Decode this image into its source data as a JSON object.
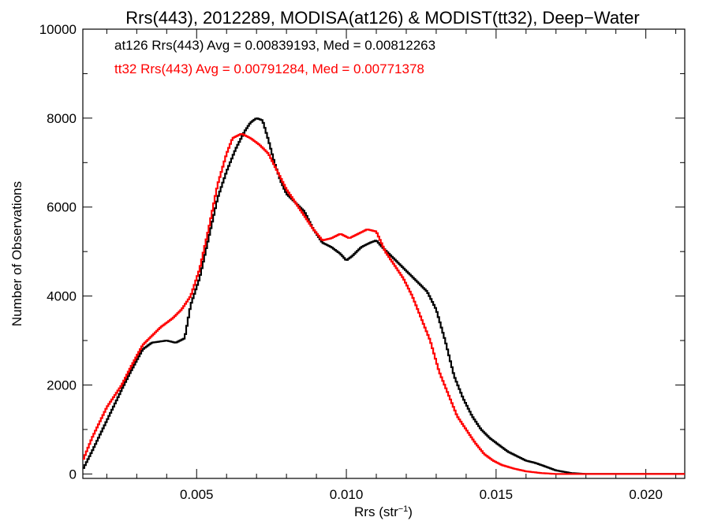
{
  "chart_data": {
    "type": "line",
    "title": "Rrs(443), 2012289, MODISA(at126) & MODIST(tt32), Deep−Water",
    "xlabel": "Rrs (str",
    "xlabel_sup": "−1",
    "xlabel_close": ")",
    "ylabel": "Number of Observations",
    "xlim": [
      0.0012,
      0.0213
    ],
    "ylim": [
      -100,
      10000
    ],
    "x_ticks": [
      0.005,
      0.01,
      0.015,
      0.02
    ],
    "x_tick_labels": [
      "0.005",
      "0.010",
      "0.015",
      "0.020"
    ],
    "x_minor_ticks": [
      0.002,
      0.003,
      0.004,
      0.006,
      0.007,
      0.008,
      0.009,
      0.011,
      0.012,
      0.013,
      0.014,
      0.016,
      0.017,
      0.018,
      0.019,
      0.021
    ],
    "y_ticks": [
      0,
      2000,
      4000,
      6000,
      8000,
      10000
    ],
    "y_tick_labels": [
      "0",
      "2000",
      "4000",
      "6000",
      "8000",
      "10000"
    ],
    "y_minor_ticks": [
      1000,
      3000,
      5000,
      7000,
      9000
    ],
    "grid": false,
    "annotations": [
      {
        "text": "at126 Rrs(443) Avg = 0.00839193, Med = 0.00812263",
        "color": "#000000"
      },
      {
        "text": "tt32 Rrs(443) Avg = 0.00791284, Med = 0.00771378",
        "color": "#ff0000"
      }
    ],
    "series": [
      {
        "color": "#000000",
        "step": true,
        "points": [
          [
            0.0012,
            100
          ],
          [
            0.0015,
            500
          ],
          [
            0.002,
            1200
          ],
          [
            0.0025,
            1900
          ],
          [
            0.0028,
            2300
          ],
          [
            0.0032,
            2800
          ],
          [
            0.0035,
            2950
          ],
          [
            0.004,
            3000
          ],
          [
            0.0043,
            2950
          ],
          [
            0.0046,
            3050
          ],
          [
            0.0048,
            3800
          ],
          [
            0.0051,
            4400
          ],
          [
            0.0054,
            5300
          ],
          [
            0.0057,
            6200
          ],
          [
            0.006,
            6800
          ],
          [
            0.0063,
            7300
          ],
          [
            0.0066,
            7700
          ],
          [
            0.0068,
            7900
          ],
          [
            0.007,
            8000
          ],
          [
            0.0072,
            7950
          ],
          [
            0.0074,
            7500
          ],
          [
            0.0076,
            7000
          ],
          [
            0.0078,
            6600
          ],
          [
            0.008,
            6300
          ],
          [
            0.0083,
            6100
          ],
          [
            0.0086,
            5900
          ],
          [
            0.0089,
            5500
          ],
          [
            0.0092,
            5200
          ],
          [
            0.0095,
            5100
          ],
          [
            0.0098,
            4950
          ],
          [
            0.01,
            4800
          ],
          [
            0.0102,
            4900
          ],
          [
            0.0105,
            5100
          ],
          [
            0.0108,
            5200
          ],
          [
            0.011,
            5250
          ],
          [
            0.0112,
            5100
          ],
          [
            0.0115,
            4900
          ],
          [
            0.0118,
            4700
          ],
          [
            0.0121,
            4500
          ],
          [
            0.0124,
            4300
          ],
          [
            0.0127,
            4100
          ],
          [
            0.013,
            3700
          ],
          [
            0.0133,
            3000
          ],
          [
            0.0136,
            2200
          ],
          [
            0.0139,
            1700
          ],
          [
            0.0142,
            1300
          ],
          [
            0.0145,
            1000
          ],
          [
            0.0148,
            800
          ],
          [
            0.0151,
            650
          ],
          [
            0.0154,
            500
          ],
          [
            0.0157,
            400
          ],
          [
            0.016,
            300
          ],
          [
            0.0163,
            250
          ],
          [
            0.0166,
            180
          ],
          [
            0.017,
            80
          ],
          [
            0.0175,
            20
          ],
          [
            0.018,
            0
          ],
          [
            0.0213,
            0
          ]
        ]
      },
      {
        "color": "#ff0000",
        "step": true,
        "points": [
          [
            0.0012,
            300
          ],
          [
            0.0015,
            800
          ],
          [
            0.002,
            1500
          ],
          [
            0.0025,
            2000
          ],
          [
            0.0028,
            2400
          ],
          [
            0.0032,
            2900
          ],
          [
            0.0035,
            3100
          ],
          [
            0.0038,
            3300
          ],
          [
            0.0042,
            3500
          ],
          [
            0.0045,
            3700
          ],
          [
            0.0048,
            4000
          ],
          [
            0.0051,
            4600
          ],
          [
            0.0054,
            5500
          ],
          [
            0.0057,
            6500
          ],
          [
            0.006,
            7200
          ],
          [
            0.0062,
            7550
          ],
          [
            0.0065,
            7650
          ],
          [
            0.0068,
            7550
          ],
          [
            0.0071,
            7400
          ],
          [
            0.0074,
            7200
          ],
          [
            0.0077,
            6800
          ],
          [
            0.008,
            6400
          ],
          [
            0.0083,
            6100
          ],
          [
            0.0086,
            5800
          ],
          [
            0.0089,
            5500
          ],
          [
            0.0092,
            5250
          ],
          [
            0.0095,
            5300
          ],
          [
            0.0098,
            5400
          ],
          [
            0.0101,
            5300
          ],
          [
            0.0104,
            5400
          ],
          [
            0.0107,
            5500
          ],
          [
            0.011,
            5450
          ],
          [
            0.0113,
            5000
          ],
          [
            0.0116,
            4700
          ],
          [
            0.0119,
            4400
          ],
          [
            0.0122,
            4000
          ],
          [
            0.0125,
            3500
          ],
          [
            0.0128,
            3000
          ],
          [
            0.0131,
            2300
          ],
          [
            0.0134,
            1800
          ],
          [
            0.0137,
            1300
          ],
          [
            0.014,
            1000
          ],
          [
            0.0143,
            700
          ],
          [
            0.0146,
            450
          ],
          [
            0.0149,
            300
          ],
          [
            0.0152,
            200
          ],
          [
            0.0156,
            120
          ],
          [
            0.016,
            60
          ],
          [
            0.0165,
            20
          ],
          [
            0.017,
            0
          ],
          [
            0.0213,
            0
          ]
        ]
      }
    ]
  }
}
